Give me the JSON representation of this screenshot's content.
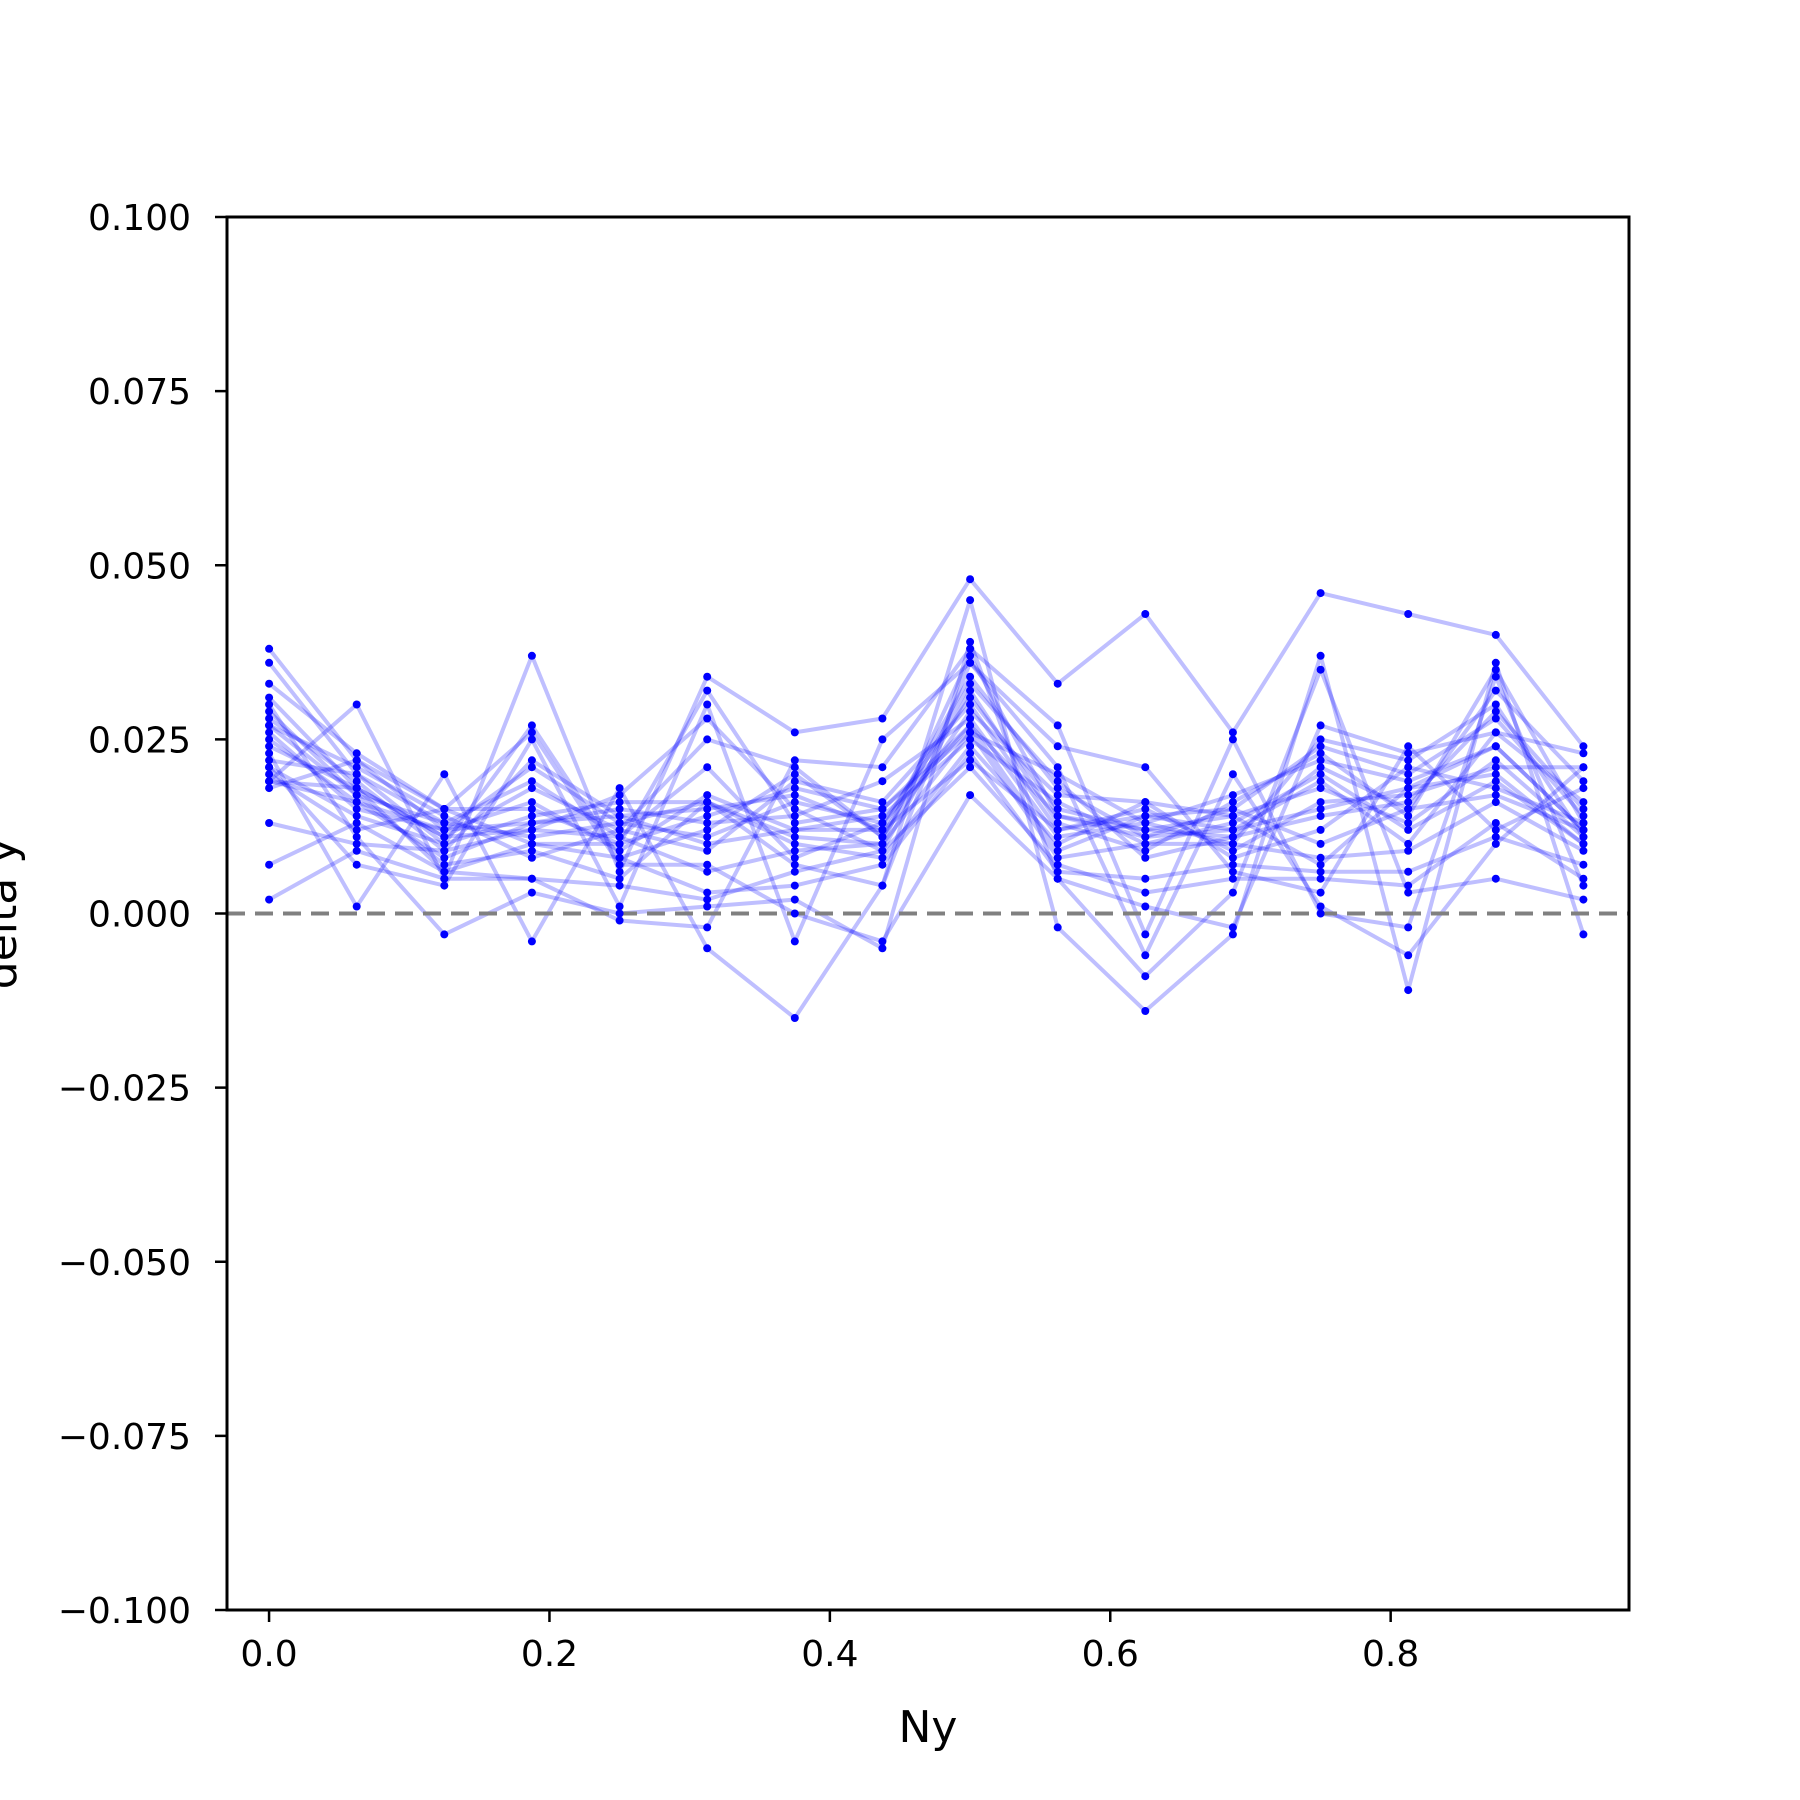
{
  "chart_data": {
    "type": "line",
    "title": "",
    "xlabel": "Ny",
    "ylabel": "delta y",
    "xlim": [
      -0.03,
      0.97
    ],
    "ylim": [
      -0.1,
      0.1
    ],
    "grid": false,
    "legend": "none",
    "x": [
      0.0,
      0.0625,
      0.125,
      0.1875,
      0.25,
      0.3125,
      0.375,
      0.4375,
      0.5,
      0.5625,
      0.625,
      0.6875,
      0.75,
      0.8125,
      0.875,
      0.9375
    ],
    "xticks": [
      0.0,
      0.2,
      0.4,
      0.6,
      0.8
    ],
    "xtick_labels": [
      "0.0",
      "0.2",
      "0.4",
      "0.6",
      "0.8"
    ],
    "yticks": [
      -0.1,
      -0.075,
      -0.05,
      -0.025,
      0.0,
      0.025,
      0.05,
      0.075,
      0.1
    ],
    "ytick_labels": [
      "−0.100",
      "−0.075",
      "−0.050",
      "−0.025",
      "0.000",
      "0.025",
      "0.050",
      "0.075",
      "0.100"
    ],
    "reference_line": {
      "y": 0.0,
      "style": "dashed",
      "color": "#808080"
    },
    "series_color": "#0000ff",
    "line_alpha": 0.25,
    "series": [
      {
        "values": [
          0.038,
          0.022,
          0.012,
          0.021,
          0.013,
          0.016,
          0.011,
          0.01,
          0.037,
          0.014,
          0.012,
          0.011,
          0.021,
          0.015,
          0.032,
          0.019
        ]
      },
      {
        "values": [
          0.036,
          0.02,
          0.01,
          0.027,
          0.008,
          0.012,
          0.02,
          0.011,
          0.029,
          0.017,
          0.016,
          0.014,
          0.007,
          0.018,
          0.024,
          0.012
        ]
      },
      {
        "values": [
          0.033,
          0.023,
          0.015,
          0.015,
          0.01,
          0.032,
          0.013,
          0.015,
          0.026,
          0.02,
          0.013,
          0.01,
          0.025,
          0.022,
          0.03,
          0.011
        ]
      },
      {
        "values": [
          0.031,
          0.018,
          0.011,
          0.012,
          0.017,
          0.028,
          0.015,
          0.009,
          0.032,
          0.013,
          0.009,
          0.016,
          0.023,
          0.014,
          0.035,
          0.013
        ]
      },
      {
        "values": [
          0.029,
          0.017,
          0.013,
          0.019,
          0.011,
          0.021,
          0.008,
          0.013,
          0.027,
          0.009,
          0.014,
          0.012,
          0.019,
          0.01,
          0.026,
          0.016
        ]
      },
      {
        "values": [
          0.028,
          0.019,
          0.009,
          0.022,
          0.014,
          0.015,
          0.017,
          0.012,
          0.034,
          0.018,
          0.011,
          0.015,
          0.024,
          0.02,
          0.028,
          0.014
        ]
      },
      {
        "values": [
          0.027,
          0.021,
          0.014,
          0.008,
          0.012,
          0.009,
          0.019,
          0.016,
          0.03,
          0.012,
          0.015,
          0.009,
          0.016,
          0.017,
          0.021,
          0.021
        ]
      },
      {
        "values": [
          0.026,
          0.015,
          0.012,
          0.016,
          0.009,
          0.017,
          0.012,
          0.014,
          0.025,
          0.016,
          0.01,
          0.013,
          0.02,
          0.012,
          0.019,
          0.01
        ]
      },
      {
        "values": [
          0.025,
          0.016,
          0.008,
          0.013,
          0.015,
          0.013,
          0.014,
          0.019,
          0.028,
          0.011,
          0.013,
          0.017,
          0.022,
          0.019,
          0.024,
          0.012
        ]
      },
      {
        "values": [
          0.024,
          0.018,
          0.011,
          0.018,
          0.012,
          0.025,
          0.021,
          0.011,
          0.033,
          0.019,
          0.008,
          0.011,
          0.014,
          0.016,
          0.029,
          0.015
        ]
      },
      {
        "values": [
          0.022,
          0.02,
          0.013,
          0.011,
          0.013,
          0.011,
          0.016,
          0.013,
          0.031,
          0.015,
          0.012,
          0.014,
          0.018,
          0.013,
          0.022,
          0.011
        ]
      },
      {
        "values": [
          0.021,
          0.014,
          0.01,
          0.014,
          0.016,
          0.016,
          0.01,
          0.008,
          0.024,
          0.01,
          0.016,
          0.008,
          0.012,
          0.021,
          0.018,
          0.013
        ]
      },
      {
        "values": [
          0.02,
          0.012,
          0.015,
          0.01,
          0.01,
          0.014,
          0.018,
          0.015,
          0.027,
          0.014,
          0.011,
          0.012,
          0.015,
          0.018,
          0.02,
          0.01
        ]
      },
      {
        "values": [
          0.019,
          0.016,
          0.012,
          0.013,
          0.014,
          0.01,
          0.012,
          0.012,
          0.022,
          0.012,
          0.014,
          0.015,
          0.01,
          0.015,
          0.017,
          0.012
        ]
      },
      {
        "values": [
          0.013,
          0.01,
          0.009,
          0.012,
          0.011,
          0.006,
          0.009,
          0.01,
          0.026,
          0.008,
          0.01,
          0.01,
          0.008,
          0.009,
          0.016,
          0.009
        ]
      },
      {
        "values": [
          0.007,
          0.013,
          0.006,
          0.01,
          0.008,
          0.003,
          0.004,
          0.007,
          0.023,
          0.006,
          0.005,
          0.007,
          0.006,
          0.006,
          0.011,
          0.007
        ]
      },
      {
        "values": [
          0.002,
          0.009,
          0.005,
          0.005,
          0.004,
          0.002,
          0.006,
          0.009,
          0.021,
          0.007,
          0.003,
          0.005,
          0.005,
          0.004,
          0.013,
          0.005
        ]
      },
      {
        "values": [
          0.019,
          0.03,
          0.005,
          0.037,
          0.006,
          0.034,
          0.026,
          0.028,
          0.048,
          0.033,
          0.043,
          0.026,
          0.046,
          0.043,
          0.04,
          0.024
        ]
      },
      {
        "values": [
          0.023,
          0.001,
          0.02,
          -0.004,
          0.018,
          -0.005,
          -0.015,
          0.004,
          0.045,
          -0.002,
          -0.014,
          -0.003,
          0.037,
          -0.011,
          0.036,
          -0.003
        ]
      },
      {
        "values": [
          0.03,
          0.011,
          -0.003,
          0.003,
          0.0,
          0.001,
          0.002,
          -0.005,
          0.039,
          0.005,
          -0.009,
          0.003,
          0.035,
          0.003,
          0.005,
          0.002
        ]
      },
      {
        "values": [
          0.021,
          0.007,
          0.004,
          0.025,
          0.001,
          0.03,
          -0.004,
          0.025,
          0.036,
          0.021,
          -0.006,
          0.02,
          0.001,
          -0.006,
          0.01,
          0.021
        ]
      },
      {
        "values": [
          0.019,
          0.018,
          0.006,
          0.005,
          -0.001,
          -0.002,
          0.022,
          0.021,
          0.038,
          0.027,
          -0.003,
          0.025,
          0.0,
          -0.002,
          0.034,
          0.004
        ]
      },
      {
        "values": [
          0.018,
          0.022,
          0.015,
          0.026,
          0.007,
          0.007,
          0.0,
          -0.004,
          0.017,
          0.005,
          0.001,
          -0.002,
          0.027,
          0.023,
          0.026,
          0.023
        ]
      },
      {
        "values": [
          0.027,
          0.017,
          0.007,
          0.009,
          0.005,
          0.016,
          0.007,
          0.004,
          0.036,
          0.024,
          0.021,
          0.006,
          0.003,
          0.024,
          0.012,
          0.018
        ]
      }
    ]
  }
}
